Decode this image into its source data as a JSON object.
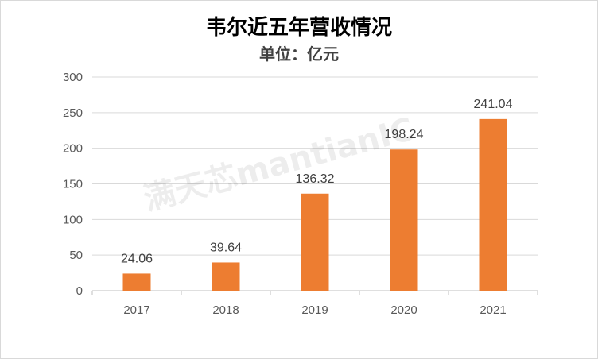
{
  "chart_data": {
    "type": "bar",
    "title": "韦尔近五年营收情况",
    "subtitle": "单位：亿元",
    "categories": [
      "2017",
      "2018",
      "2019",
      "2020",
      "2021"
    ],
    "values": [
      24.06,
      39.64,
      136.32,
      198.24,
      241.04
    ],
    "data_labels": [
      "24.06",
      "39.64",
      "136.32",
      "198.24",
      "241.04"
    ],
    "yticks": [
      "0",
      "50",
      "100",
      "150",
      "200",
      "250",
      "300"
    ],
    "ylim": [
      0,
      300
    ],
    "grid": true,
    "bar_color": "#ED7D31",
    "legend": "none"
  },
  "watermark": "满天芯mantianIC"
}
